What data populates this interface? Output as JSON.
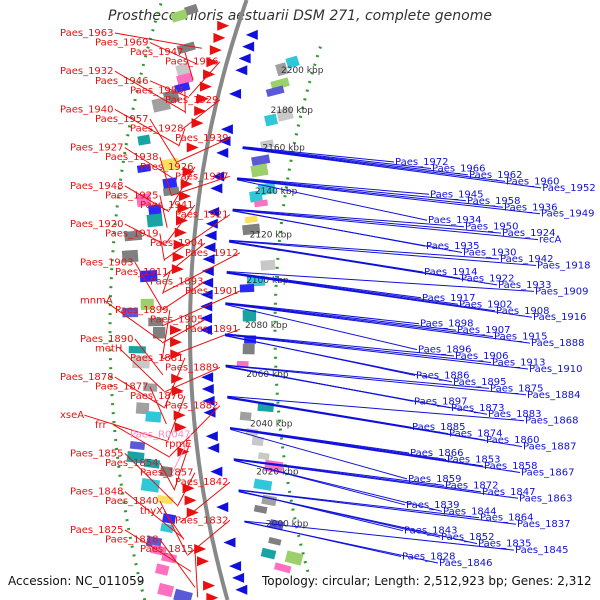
{
  "title": "Prosthecochloris aestuarii DSM 271, complete genome",
  "footer": {
    "accession": "Accession: NC_011059",
    "topology": "Topology: circular; Length: 2,512,923 bp; Genes: 2,312"
  },
  "colors": {
    "forward": "#e81010",
    "reverse": "#1010dd",
    "rna": "#ff8cc8",
    "backbone": "#888888",
    "dots": "#2e9a2e"
  },
  "kbp_ticks": [
    "2200 kbp",
    "2180 kbp",
    "2160 kbp",
    "2140 kbp",
    "2120 kbp",
    "2100 kbp",
    "2080 kbp",
    "2060 kbp",
    "2040 kbp",
    "2020 kbp",
    "2000 kbp"
  ],
  "left_labels": [
    "Paes_1963",
    "Paes_1969",
    "Paes_1947",
    "Paes_1956",
    "Paes_1932",
    "Paes_1946",
    "Paes_1953",
    "Paes_1929",
    "Paes_1940",
    "Paes_1957",
    "Paes_1928",
    "Paes_1939",
    "Paes_1927",
    "Paes_1938",
    "Paes_1926",
    "Paes_1937",
    "Paes_1948",
    "Paes_1925",
    "Paes_1941",
    "Paes_1921",
    "Paes_1920",
    "Paes_1919",
    "Paes_1904",
    "Paes_1912",
    "Paes_1903",
    "Paes_1911",
    "Paes_1893",
    "Paes_1901",
    "mnmA",
    "Paes_1899",
    "Paes_1905",
    "Paes_1891",
    "Paes_1890",
    "metH",
    "Paes_1881",
    "Paes_1889",
    "Paes_1878",
    "Paes_1877",
    "Paes_1876",
    "Paes_1882",
    "xseA",
    "frr",
    "Paes_R0047",
    "rpmE",
    "Paes_1855",
    "Paes_1854",
    "Paes_1857",
    "Paes_1842",
    "Paes_1848",
    "Paes_1840",
    "thyX",
    "Paes_1832",
    "Paes_1825",
    "Paes_1818",
    "Paes_1815"
  ],
  "right_labels": [
    "Paes_1972",
    "Paes_1966",
    "Paes_1962",
    "Paes_1960",
    "Paes_1952",
    "Paes_1945",
    "Paes_1958",
    "Paes_1936",
    "Paes_1949",
    "Paes_1934",
    "Paes_1950",
    "Paes_1924",
    "recA",
    "Paes_1935",
    "Paes_1930",
    "Paes_1942",
    "Paes_1918",
    "Paes_1914",
    "Paes_1922",
    "Paes_1933",
    "Paes_1909",
    "Paes_1917",
    "Paes_1902",
    "Paes_1908",
    "Paes_1916",
    "Paes_1898",
    "Paes_1907",
    "Paes_1915",
    "Paes_1888",
    "Paes_1896",
    "Paes_1906",
    "Paes_1913",
    "Paes_1910",
    "Paes_1886",
    "Paes_1895",
    "Paes_1875",
    "Paes_1884",
    "Paes_1897",
    "Paes_1873",
    "Paes_1883",
    "Paes_1868",
    "Paes_1885",
    "Paes_1874",
    "Paes_1860",
    "Paes_1887",
    "Paes_1866",
    "Paes_1853",
    "Paes_1858",
    "Paes_1867",
    "Paes_1859",
    "Paes_1872",
    "Paes_1847",
    "Paes_1863",
    "Paes_1839",
    "Paes_1844",
    "Paes_1864",
    "Paes_1837",
    "Paes_1843",
    "Paes_1852",
    "Paes_1835",
    "Paes_1845",
    "Paes_1828",
    "Paes_1846"
  ]
}
